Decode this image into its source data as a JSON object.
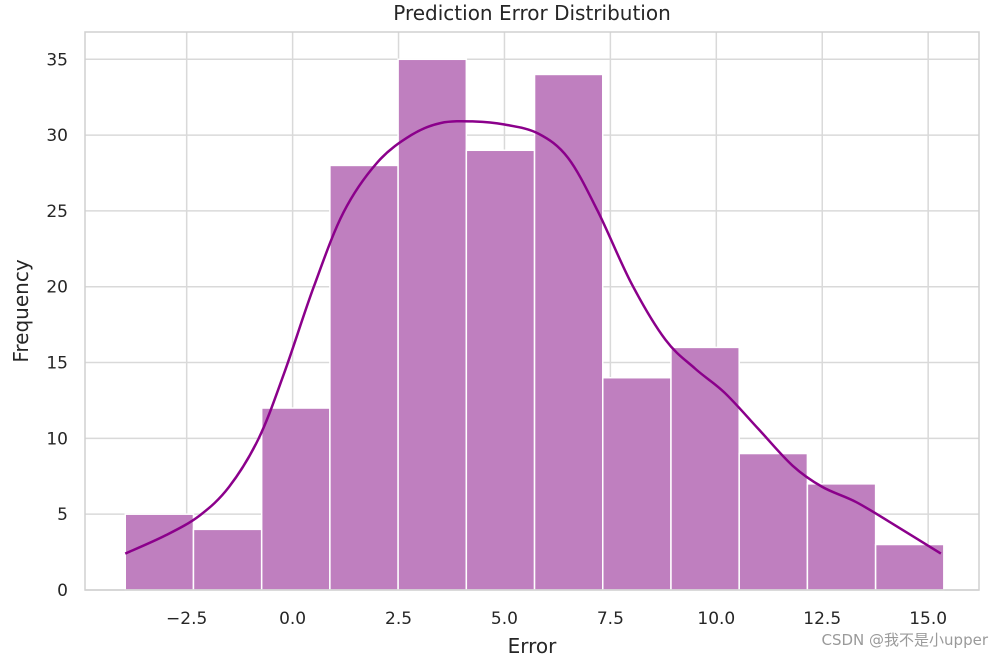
{
  "chart_data": {
    "type": "bar",
    "title": "Prediction Error Distribution",
    "xlabel": "Error",
    "ylabel": "Frequency",
    "xlim": [
      -4.9,
      16.2
    ],
    "ylim": [
      0,
      36.8
    ],
    "xticks": [
      -2.5,
      0.0,
      2.5,
      5.0,
      7.5,
      10.0,
      12.5,
      15.0
    ],
    "xtick_labels": [
      "−2.5",
      "0.0",
      "2.5",
      "5.0",
      "7.5",
      "10.0",
      "12.5",
      "15.0"
    ],
    "yticks": [
      0,
      5,
      10,
      15,
      20,
      25,
      30,
      35
    ],
    "ytick_labels": [
      "0",
      "5",
      "10",
      "15",
      "20",
      "25",
      "30",
      "35"
    ],
    "grid": true,
    "bins": {
      "left_edges": [
        -3.95,
        -2.34,
        -0.73,
        0.88,
        2.49,
        4.1,
        5.71,
        7.32,
        8.93,
        10.54,
        12.15,
        13.76
      ],
      "width": 1.61,
      "counts": [
        5,
        4,
        12,
        28,
        35,
        29,
        34,
        14,
        16,
        9,
        7,
        3
      ]
    },
    "kde": {
      "x": [
        -3.95,
        -3.0,
        -2.2,
        -1.5,
        -0.8,
        -0.2,
        0.5,
        1.2,
        2.0,
        2.8,
        3.5,
        4.3,
        5.0,
        5.8,
        6.5,
        7.2,
        8.0,
        8.8,
        9.5,
        10.2,
        11.0,
        11.8,
        12.5,
        13.3,
        14.2,
        15.3
      ],
      "y": [
        2.4,
        3.6,
        4.9,
        6.8,
        10.0,
        14.3,
        20.0,
        24.9,
        28.2,
        30.0,
        30.8,
        30.9,
        30.7,
        30.1,
        28.5,
        25.0,
        20.2,
        16.5,
        14.6,
        13.0,
        10.6,
        8.2,
        6.8,
        5.8,
        4.3,
        2.4
      ]
    },
    "bar_color": "#bf7fbf",
    "bar_edge_color": "#ffffff",
    "kde_color": "#8b008b",
    "grid_color": "#d9d9d9"
  },
  "watermark": "CSDN @我不是小upper"
}
